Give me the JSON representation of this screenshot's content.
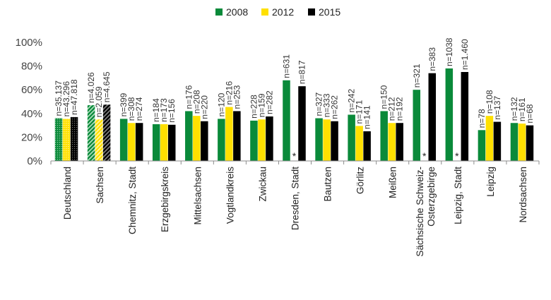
{
  "chart_data": {
    "type": "bar",
    "categories": [
      "Deutschland",
      "Sachsen",
      "Chemnitz, Stadt",
      "Erzgebirgskreis",
      "Mittelsachsen",
      "Vogtlandkreis",
      "Zwickau",
      "Dresden, Stadt",
      "Bautzen",
      "Görlitz",
      "Meißen",
      "Sächsische Schweiz-Osterzgebirge",
      "Leipzig, Stadt",
      "Leipzig",
      "Nordsachsen"
    ],
    "category_lines": [
      [
        "Deutschland"
      ],
      [
        "Sachsen"
      ],
      [
        "Chemnitz, Stadt"
      ],
      [
        "Erzgebirgskreis"
      ],
      [
        "Mittelsachsen"
      ],
      [
        "Vogtlandkreis"
      ],
      [
        "Zwickau"
      ],
      [
        "Dresden, Stadt"
      ],
      [
        "Bautzen"
      ],
      [
        "Görlitz"
      ],
      [
        "Meißen"
      ],
      [
        "Sächsische Schweiz-",
        "Osterzgebirge"
      ],
      [
        "Leipzig, Stadt"
      ],
      [
        "Leipzig"
      ],
      [
        "Nordsachsen"
      ]
    ],
    "series": [
      {
        "name": "2008",
        "color": "#0a8a3a",
        "values": [
          36,
          47,
          35.5,
          31,
          42,
          35.5,
          34,
          68,
          36,
          39,
          42,
          60,
          78,
          26,
          32
        ],
        "n": [
          "n=35.137",
          "n=4.026",
          "n=399",
          "n=184",
          "n=176",
          "n=120",
          "n=228",
          "n=631",
          "n=327",
          "n=242",
          "n=150",
          "n=321",
          "n=1038",
          "n=78",
          "n=132"
        ]
      },
      {
        "name": "2012",
        "color": "#ffe000",
        "values": [
          35.5,
          35,
          32,
          31,
          38,
          45.5,
          35,
          null,
          35,
          29.5,
          32,
          null,
          null,
          38,
          31.5
        ],
        "n": [
          "n=43.296",
          "n=2.059",
          "n=308",
          "n=173",
          "n=208",
          "n=216",
          "n=159",
          "*",
          "n=333",
          "n=171",
          "n=212",
          "*",
          "*",
          "n=108",
          "n=161"
        ]
      },
      {
        "name": "2015",
        "color": "#000000",
        "values": [
          37,
          47.5,
          32,
          30.5,
          33.5,
          42,
          37.5,
          63,
          33.5,
          25,
          32,
          74,
          75,
          33,
          30
        ],
        "n": [
          "n=47.818",
          "n=4.645",
          "n=274",
          "n=156",
          "n=220",
          "n=253",
          "n=282",
          "n=817",
          "n=262",
          "n=141",
          "n=192",
          "n=383",
          "n=1.460",
          "n=137",
          "n=68"
        ]
      }
    ],
    "pattern_categories": [
      "Deutschland",
      "Sachsen"
    ],
    "y_ticks": [
      "0%",
      "20%",
      "40%",
      "60%",
      "80%",
      "100%"
    ],
    "ylim": [
      0,
      100
    ],
    "legend_position": "top-center",
    "grid": false
  }
}
